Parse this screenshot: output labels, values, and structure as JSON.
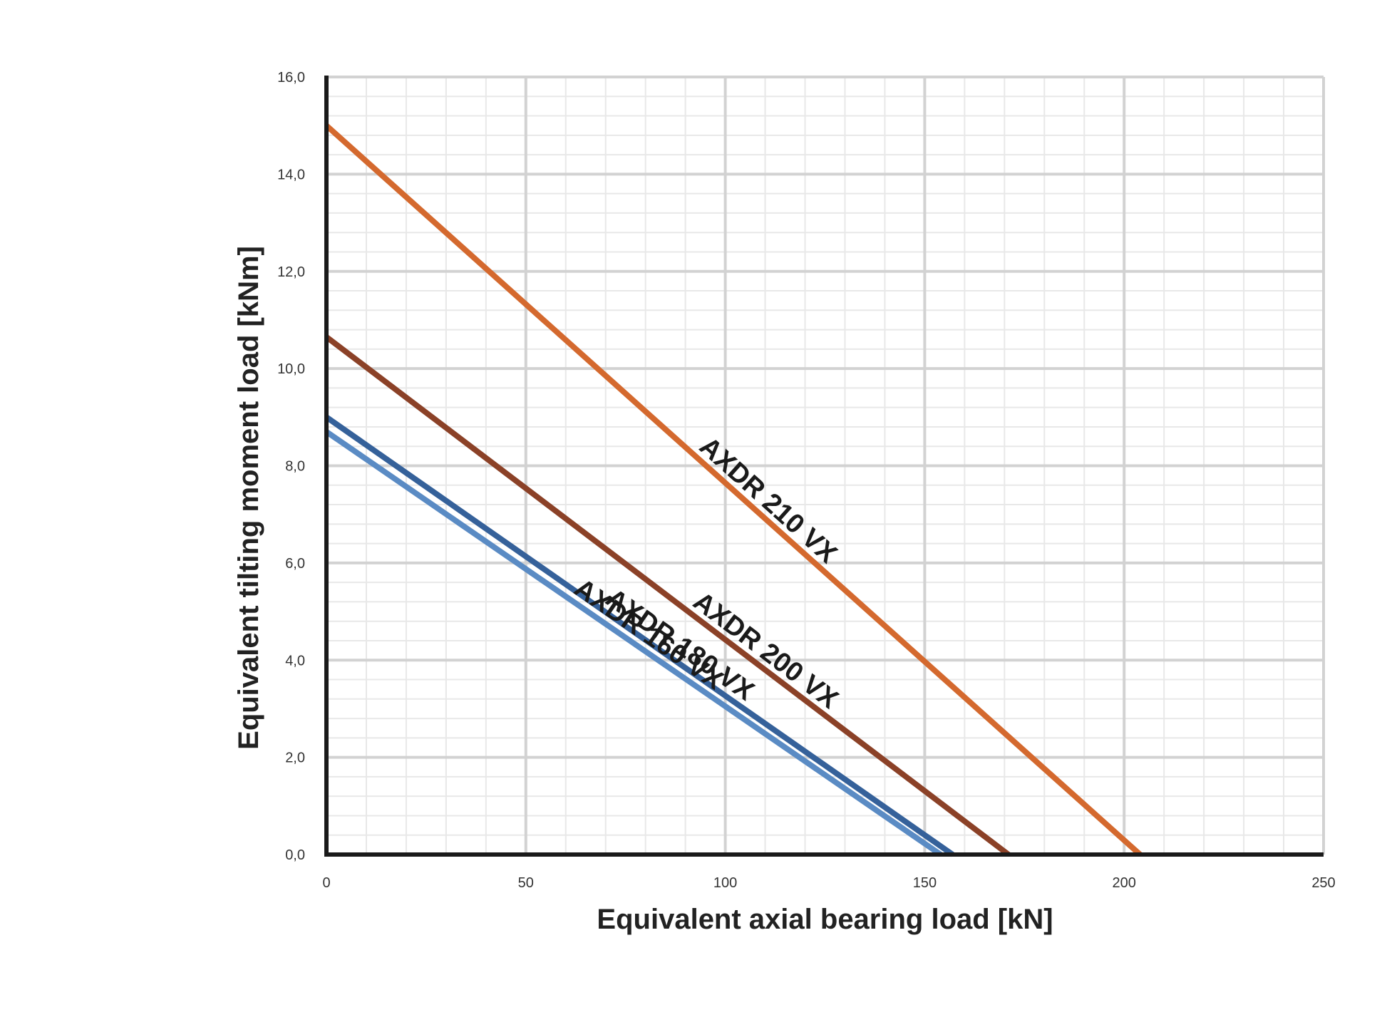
{
  "chart_data": {
    "type": "line",
    "xlabel": "Equivalent axial bearing load [kN]",
    "ylabel": "Equivalent tilting moment load [kNm]",
    "xlim": [
      0,
      250
    ],
    "ylim": [
      0,
      16
    ],
    "x_ticks": [
      "0",
      "50",
      "100",
      "150",
      "200",
      "250"
    ],
    "y_ticks": [
      "0,0",
      "2,0",
      "4,0",
      "6,0",
      "8,0",
      "10,0",
      "12,0",
      "14,0",
      "16,0"
    ],
    "grid": true,
    "legend": "none",
    "series": [
      {
        "name": "AXDR 210 VX",
        "color": "#d4692e",
        "x": [
          0,
          204
        ],
        "y": [
          15.0,
          0.0
        ]
      },
      {
        "name": "AXDR 200 VX",
        "color": "#8b4127",
        "x": [
          0,
          171
        ],
        "y": [
          10.65,
          0.0
        ]
      },
      {
        "name": "AXDR 180 VX",
        "color": "#35619a",
        "x": [
          0,
          157
        ],
        "y": [
          9.0,
          0.0
        ]
      },
      {
        "name": "AXDR 160 VX",
        "color": "#5a8bc4",
        "x": [
          0,
          154
        ],
        "y": [
          8.7,
          0.0
        ]
      }
    ]
  }
}
